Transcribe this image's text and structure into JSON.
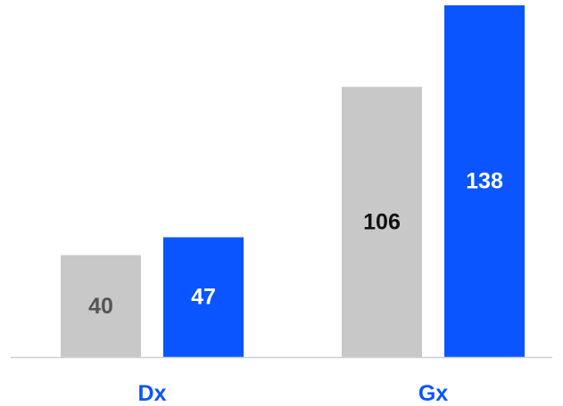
{
  "chart_data": {
    "type": "bar",
    "categories": [
      "Dx",
      "Gx"
    ],
    "series": [
      {
        "values": [
          40,
          106
        ],
        "color": "#c8c8c8",
        "label_colors": [
          "#555555",
          "#111111"
        ]
      },
      {
        "values": [
          47,
          138
        ],
        "color": "#0a55ff",
        "label_colors": [
          "#ffffff",
          "#ffffff"
        ]
      }
    ],
    "title": "",
    "xlabel": "",
    "ylabel": "",
    "ylim": [
      0,
      138
    ],
    "grid": false,
    "legend": "none",
    "axis_color": "#c8d0dc",
    "category_label_color": "#0a55ff"
  }
}
